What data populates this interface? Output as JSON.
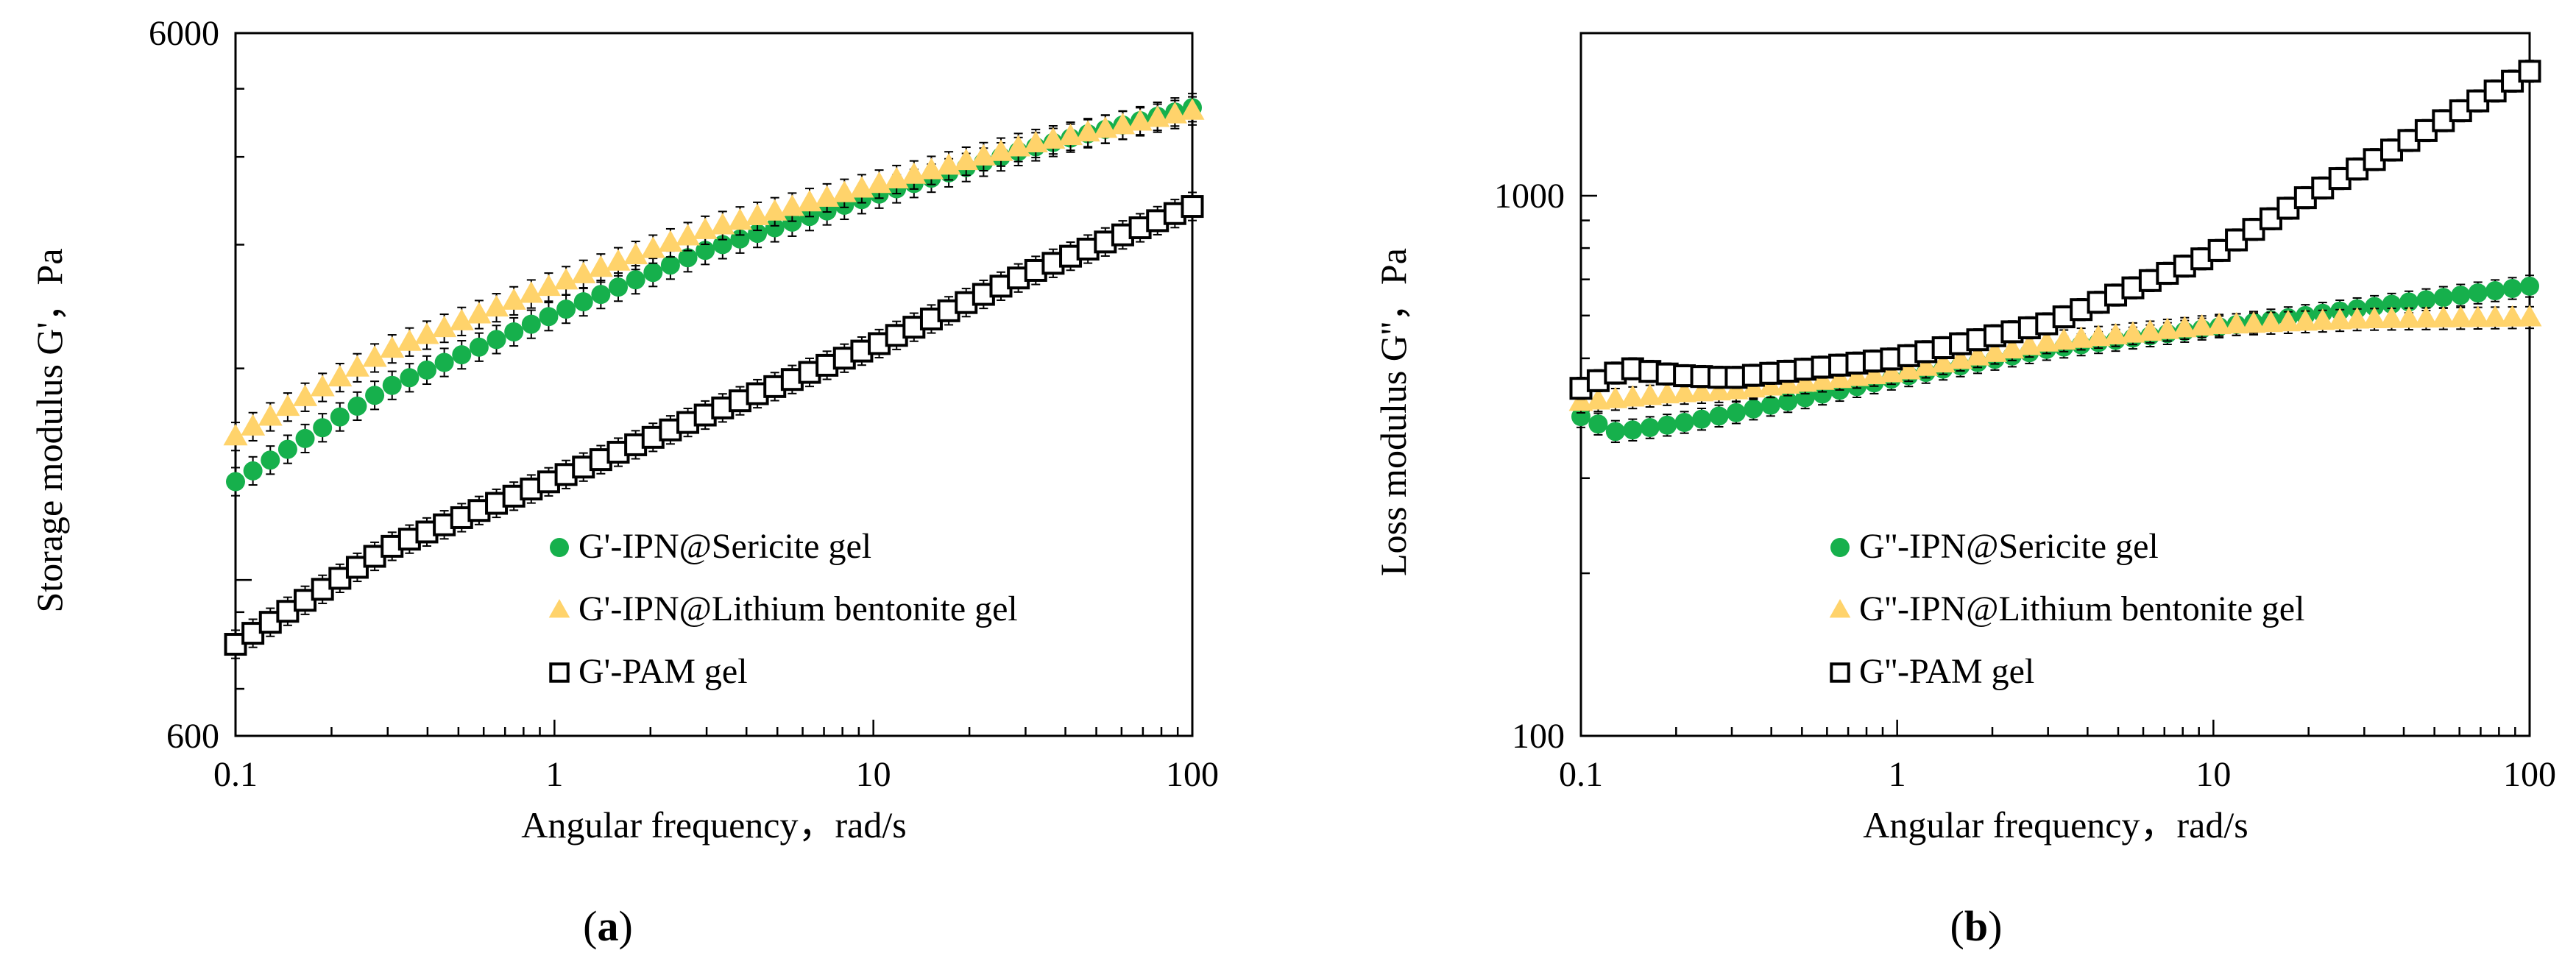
{
  "chart_data": [
    {
      "type": "scatter",
      "panel_label": "(a)",
      "panel_letter": "a",
      "xlabel": "Angular frequency，rad/s",
      "ylabel": "Storage modulus G'，Pa",
      "xscale": "log",
      "yscale": "log",
      "xlim": [
        0.1,
        100
      ],
      "ylim": [
        600,
        6000
      ],
      "x_ticks": [
        {
          "value": 0.1,
          "label": "0.1"
        },
        {
          "value": 1,
          "label": "1"
        },
        {
          "value": 10,
          "label": "10"
        },
        {
          "value": 100,
          "label": "100"
        }
      ],
      "y_ticks": [
        {
          "value": 600,
          "label": "600"
        },
        {
          "value": 6000,
          "label": "6000"
        }
      ],
      "legend_position": "lower-center",
      "series": [
        {
          "name": "G'-IPN@Sericite gel",
          "marker": "circle",
          "color": "#16b04c",
          "error_bars": true,
          "x": [
            0.1,
            0.3,
            1,
            3,
            10,
            30,
            100
          ],
          "y": [
            1380,
            1880,
            2390,
            2950,
            3520,
            4100,
            4700
          ]
        },
        {
          "name": "G'-IPN@Lithium bentonite gel",
          "marker": "triangle",
          "color": "#ffd36b",
          "error_bars": true,
          "x": [
            0.1,
            0.3,
            1,
            3,
            10,
            30,
            100
          ],
          "y": [
            1600,
            2120,
            2630,
            3150,
            3640,
            4150,
            4650
          ]
        },
        {
          "name": "G'-PAM gel",
          "marker": "open-square",
          "color": "#000000",
          "error_bars": true,
          "x": [
            0.1,
            0.3,
            1,
            3,
            10,
            30,
            100
          ],
          "y": [
            810,
            1110,
            1390,
            1720,
            2150,
            2720,
            3400
          ]
        }
      ]
    },
    {
      "type": "scatter",
      "panel_label": "(b)",
      "panel_letter": "b",
      "xlabel": "Angular frequency，rad/s",
      "ylabel": "Loss modulus G''，Pa",
      "xscale": "log",
      "yscale": "log",
      "xlim": [
        0.1,
        100
      ],
      "ylim": [
        100,
        2000
      ],
      "x_ticks": [
        {
          "value": 0.1,
          "label": "0.1"
        },
        {
          "value": 1,
          "label": "1"
        },
        {
          "value": 10,
          "label": "10"
        },
        {
          "value": 100,
          "label": "100"
        }
      ],
      "y_ticks": [
        {
          "value": 100,
          "label": "100"
        },
        {
          "value": 1000,
          "label": "1000"
        }
      ],
      "legend_position": "lower-center",
      "series": [
        {
          "name": "G''-IPN@Sericite gel",
          "marker": "circle",
          "color": "#16b04c",
          "error_bars": true,
          "x": [
            0.1,
            0.13,
            0.2,
            0.3,
            1,
            3,
            10,
            30,
            100
          ],
          "y": [
            390,
            365,
            378,
            395,
            460,
            520,
            570,
            620,
            680
          ]
        },
        {
          "name": "G''-IPN@Lithium bentonite gel",
          "marker": "triangle",
          "color": "#ffd36b",
          "error_bars": true,
          "x": [
            0.1,
            0.13,
            0.2,
            0.3,
            1,
            3,
            10,
            30,
            100
          ],
          "y": [
            415,
            420,
            430,
            435,
            470,
            535,
            575,
            590,
            595
          ]
        },
        {
          "name": "G''-PAM gel",
          "marker": "open-square",
          "color": "#000000",
          "error_bars": true,
          "x": [
            0.1,
            0.14,
            0.2,
            0.3,
            1,
            3,
            10,
            20,
            40,
            100
          ],
          "y": [
            440,
            480,
            465,
            460,
            500,
            580,
            780,
            1000,
            1250,
            1700
          ]
        }
      ]
    }
  ]
}
